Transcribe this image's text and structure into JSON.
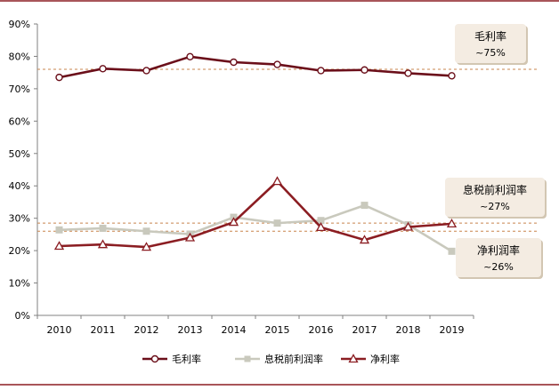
{
  "chart_data": {
    "type": "line",
    "categories": [
      "2010",
      "2011",
      "2012",
      "2013",
      "2014",
      "2015",
      "2016",
      "2017",
      "2018",
      "2019"
    ],
    "ylim": [
      0,
      90
    ],
    "yticks": [
      "0%",
      "10%",
      "20%",
      "30%",
      "40%",
      "50%",
      "60%",
      "70%",
      "80%",
      "90%"
    ],
    "grid": false,
    "legend_position": "bottom",
    "series": [
      {
        "name": "毛利率",
        "color": "#6b0f1a",
        "marker": "circle",
        "values": [
          73.5,
          76.2,
          75.6,
          79.9,
          78.2,
          77.5,
          75.6,
          75.8,
          74.8,
          74.0
        ]
      },
      {
        "name": "息税前利润率",
        "color": "#c9c9bd",
        "marker": "square",
        "values": [
          26.4,
          26.9,
          26.0,
          25.1,
          30.3,
          28.5,
          29.3,
          34.0,
          28.0,
          19.8
        ]
      },
      {
        "name": "净利率",
        "color": "#8b1d22",
        "marker": "triangle",
        "values": [
          21.4,
          21.9,
          21.1,
          24.0,
          28.8,
          41.4,
          27.2,
          23.3,
          27.3,
          28.3
        ]
      }
    ],
    "reference_lines": [
      {
        "value": 76.0,
        "color": "#c8844c"
      },
      {
        "value": 28.5,
        "color": "#c8844c"
      },
      {
        "value": 26.0,
        "color": "#c8844c"
      }
    ],
    "annotations": [
      {
        "name": "gross-margin-annotation",
        "line1": "毛利率",
        "line2": "~75%"
      },
      {
        "name": "ebit-margin-annotation",
        "line1": "息税前利润率",
        "line2": "~27%"
      },
      {
        "name": "net-margin-annotation",
        "line1": "净利润率",
        "line2": "~26%"
      }
    ]
  }
}
